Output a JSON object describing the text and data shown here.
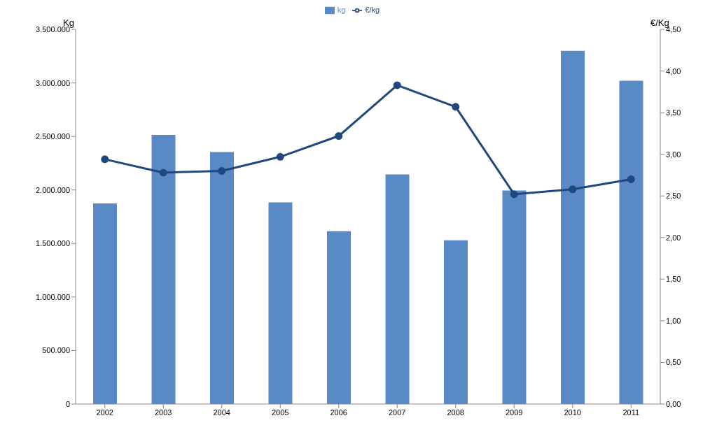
{
  "chart_data": {
    "type": "bar",
    "categories": [
      "2002",
      "2003",
      "2004",
      "2005",
      "2006",
      "2007",
      "2008",
      "2009",
      "2010",
      "2011"
    ],
    "series": [
      {
        "name": "kg",
        "color": "#5a8ac6",
        "values": [
          1875000,
          2515000,
          2355000,
          1885000,
          1615000,
          2145000,
          1530000,
          1995000,
          3300000,
          3020000
        ]
      },
      {
        "name": "€/kg",
        "type": "line",
        "axis": "y2",
        "color": "#1f497d",
        "values": [
          2.94,
          2.78,
          2.8,
          2.97,
          3.22,
          3.83,
          3.57,
          2.52,
          2.58,
          2.7
        ]
      }
    ],
    "ylabel": "Kg",
    "y2label": "€/Kg",
    "ylim": [
      0,
      3500000
    ],
    "yticks": [
      0,
      {
        "value": 500000,
        "label": "500.000"
      },
      {
        "value": 1000000,
        "label": "1.000.000"
      },
      {
        "value": 1500000,
        "label": "1.500.000"
      },
      {
        "value": 2000000,
        "label": "2.000.000"
      },
      {
        "value": 2500000,
        "label": "2.500.000"
      },
      {
        "value": 3000000,
        "label": "3.000.000"
      },
      {
        "value": 3500000,
        "label": "3.500.000"
      }
    ],
    "y2lim": [
      0,
      4.5
    ],
    "y2ticks": [
      {
        "value": 0,
        "label": "0,00"
      },
      {
        "value": 0.5,
        "label": "0,50"
      },
      {
        "value": 1,
        "label": "1,00"
      },
      {
        "value": 1.5,
        "label": "1,50"
      },
      {
        "value": 2,
        "label": "2,00"
      },
      {
        "value": 2.5,
        "label": "2,50"
      },
      {
        "value": 3,
        "label": "3,00"
      },
      {
        "value": 3.5,
        "label": "3,50"
      },
      {
        "value": 4,
        "label": "4,00"
      },
      {
        "value": 4.5,
        "label": "4,50"
      }
    ],
    "legend": "top",
    "marker": "circle",
    "grid": false
  }
}
